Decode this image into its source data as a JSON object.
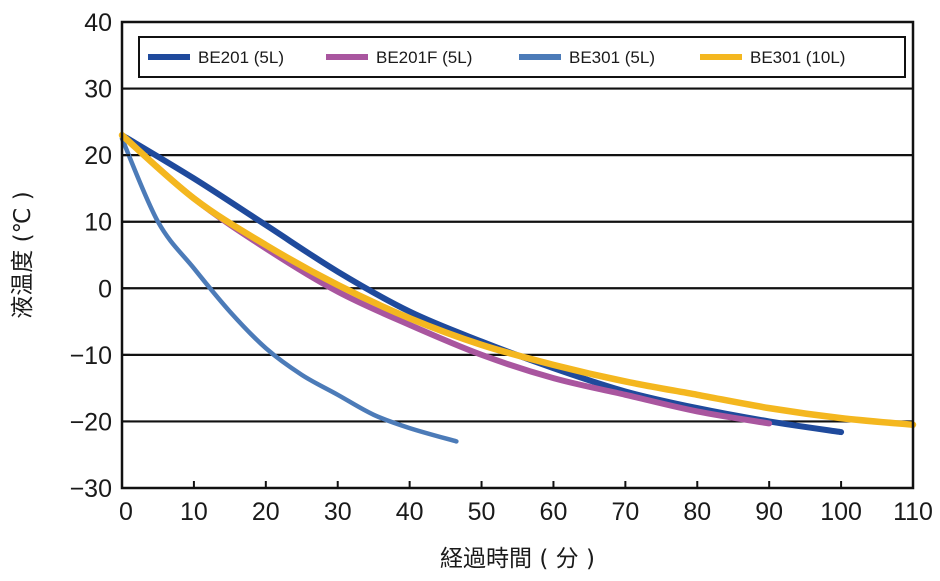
{
  "chart_data": {
    "type": "line",
    "title": "",
    "xlabel": "経過時間 ( 分 )",
    "ylabel": "液温度 (℃ )",
    "xlim": [
      0,
      110
    ],
    "ylim": [
      -30,
      40
    ],
    "x_ticks": [
      0,
      10,
      20,
      30,
      40,
      50,
      60,
      70,
      80,
      90,
      100,
      110
    ],
    "x_tick_labels": [
      "0",
      "10",
      "20",
      "30",
      "40",
      "50",
      "60",
      "70",
      "80",
      "90",
      "100",
      "110"
    ],
    "y_ticks": [
      40,
      30,
      20,
      10,
      0,
      -10,
      -20,
      -30
    ],
    "y_tick_labels": [
      "40",
      "30",
      "20",
      "10",
      "0",
      "−10",
      "−20",
      "−30"
    ],
    "grid": "horizontal",
    "legend_position": "top",
    "series": [
      {
        "name": "BE201 (5L)",
        "color": "#1f4a9c",
        "x": [
          0,
          10,
          20,
          30,
          40,
          50,
          60,
          70,
          80,
          90,
          100
        ],
        "y": [
          23,
          16.5,
          9.5,
          2.5,
          -3.5,
          -8,
          -12,
          -15.5,
          -18,
          -20,
          -21.6
        ]
      },
      {
        "name": "BE201F (5L)",
        "color": "#a9569f",
        "x": [
          0,
          10,
          20,
          30,
          40,
          50,
          60,
          70,
          80,
          90
        ],
        "y": [
          23,
          13.5,
          6,
          -0.5,
          -5.5,
          -10,
          -13.5,
          -16,
          -18.5,
          -20.3
        ]
      },
      {
        "name": "BE301 (5L)",
        "color": "#4c7bb8",
        "x": [
          0,
          5,
          10,
          15,
          20,
          25,
          30,
          35,
          40,
          46.5
        ],
        "y": [
          22.5,
          10,
          3,
          -3.5,
          -9,
          -13,
          -16,
          -19,
          -21,
          -23
        ]
      },
      {
        "name": "BE301 (10L)",
        "color": "#f4b71f",
        "x": [
          0,
          10,
          20,
          30,
          40,
          50,
          60,
          70,
          80,
          90,
          100,
          110
        ],
        "y": [
          23,
          13.5,
          6.5,
          0.5,
          -4.5,
          -8.5,
          -11.5,
          -14,
          -16,
          -18,
          -19.5,
          -20.5
        ]
      }
    ]
  }
}
